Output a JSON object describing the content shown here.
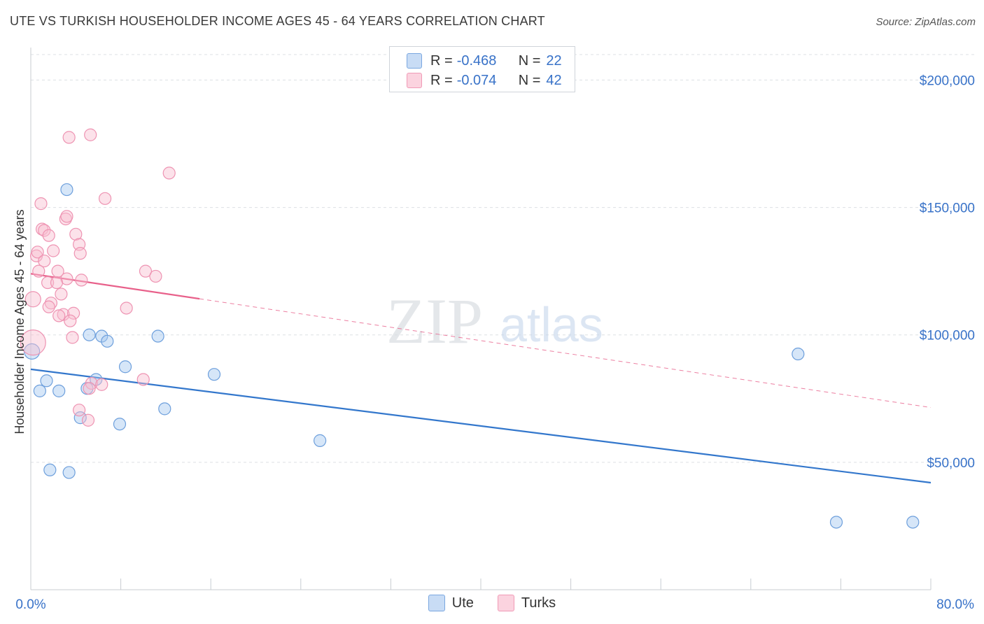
{
  "title": "UTE VS TURKISH HOUSEHOLDER INCOME AGES 45 - 64 YEARS CORRELATION CHART",
  "source": "Source: ZipAtlas.com",
  "watermark": {
    "zip": "ZIP",
    "atlas": "atlas"
  },
  "legend": {
    "r_label": "R =",
    "n_label": "N =",
    "rows": [
      {
        "r": "-0.468",
        "n": "22",
        "fill": "#c8dcf5",
        "stroke": "#7aa7e0"
      },
      {
        "r": "-0.074",
        "n": "42",
        "fill": "#fbd3df",
        "stroke": "#f09ab6"
      }
    ]
  },
  "bottom_legend": [
    {
      "name": "Ute",
      "fill": "#c8dcf5",
      "stroke": "#7aa7e0"
    },
    {
      "name": "Turks",
      "fill": "#fbd3df",
      "stroke": "#f09ab6"
    }
  ],
  "chart_data": {
    "type": "scatter",
    "title": "UTE VS TURKISH HOUSEHOLDER INCOME AGES 45 - 64 YEARS CORRELATION CHART",
    "xlabel": "",
    "ylabel": "Householder Income Ages 45 - 64 years",
    "xlim": [
      0,
      80
    ],
    "ylim": [
      0,
      210000
    ],
    "x_tick_labels": [
      "0.0%",
      "80.0%"
    ],
    "y_ticks": [
      50000,
      100000,
      150000,
      200000
    ],
    "y_tick_labels": [
      "$50,000",
      "$100,000",
      "$150,000",
      "$200,000"
    ],
    "grid": "horizontal dashed",
    "legend_position": "top-center",
    "series": [
      {
        "name": "Ute",
        "color": "#3377cc",
        "fill": "rgba(165,200,240,0.45)",
        "stroke": "#6d9fdc",
        "points": [
          [
            3.2,
            157000
          ],
          [
            0.1,
            93500
          ],
          [
            0.8,
            78000
          ],
          [
            1.4,
            82000
          ],
          [
            2.5,
            78000
          ],
          [
            5.2,
            100000
          ],
          [
            6.3,
            99500
          ],
          [
            6.8,
            97500
          ],
          [
            11.3,
            99500
          ],
          [
            8.4,
            87500
          ],
          [
            5.0,
            79000
          ],
          [
            5.8,
            82500
          ],
          [
            4.4,
            67500
          ],
          [
            7.9,
            65000
          ],
          [
            11.9,
            71000
          ],
          [
            16.3,
            84500
          ],
          [
            1.7,
            47000
          ],
          [
            3.4,
            46000
          ],
          [
            25.7,
            58500
          ],
          [
            68.2,
            92500
          ],
          [
            71.6,
            26500
          ],
          [
            78.4,
            26500
          ]
        ],
        "trend": {
          "x0": 0,
          "y0": 86500,
          "x1": 80,
          "y1": 42000,
          "style": "solid"
        }
      },
      {
        "name": "Turks",
        "color": "#e8608a",
        "fill": "rgba(248,190,208,0.45)",
        "stroke": "#ee93b2",
        "points": [
          [
            3.4,
            177500
          ],
          [
            5.3,
            178500
          ],
          [
            12.3,
            163500
          ],
          [
            0.9,
            151500
          ],
          [
            6.6,
            153500
          ],
          [
            3.1,
            145500
          ],
          [
            3.2,
            146500
          ],
          [
            1.0,
            141500
          ],
          [
            1.2,
            141000
          ],
          [
            1.6,
            139000
          ],
          [
            4.0,
            139500
          ],
          [
            4.3,
            135500
          ],
          [
            4.4,
            132000
          ],
          [
            0.5,
            131000
          ],
          [
            0.6,
            132500
          ],
          [
            2.0,
            133000
          ],
          [
            1.2,
            129000
          ],
          [
            0.7,
            125000
          ],
          [
            2.4,
            125000
          ],
          [
            3.2,
            122000
          ],
          [
            4.5,
            121500
          ],
          [
            1.5,
            120500
          ],
          [
            2.3,
            120500
          ],
          [
            10.2,
            125000
          ],
          [
            11.1,
            123000
          ],
          [
            2.7,
            116000
          ],
          [
            0.2,
            114000
          ],
          [
            1.8,
            112500
          ],
          [
            1.6,
            111000
          ],
          [
            2.9,
            108000
          ],
          [
            3.8,
            108500
          ],
          [
            8.5,
            110500
          ],
          [
            2.5,
            107500
          ],
          [
            3.5,
            105500
          ],
          [
            3.7,
            99000
          ],
          [
            0.2,
            97000
          ],
          [
            10.0,
            82500
          ],
          [
            5.4,
            81000
          ],
          [
            6.3,
            80500
          ],
          [
            5.2,
            79000
          ],
          [
            4.3,
            70500
          ],
          [
            5.1,
            66500
          ]
        ],
        "trend": {
          "x0": 0,
          "y0": 124000,
          "x1": 80,
          "y1": 71500,
          "solid_until_x": 15,
          "style": "solid-then-dashed"
        }
      }
    ],
    "point_sizes_note": "large bubble at x=0.2,y=97000 (Turks) and x=0.1,y=93500 (Ute)"
  }
}
